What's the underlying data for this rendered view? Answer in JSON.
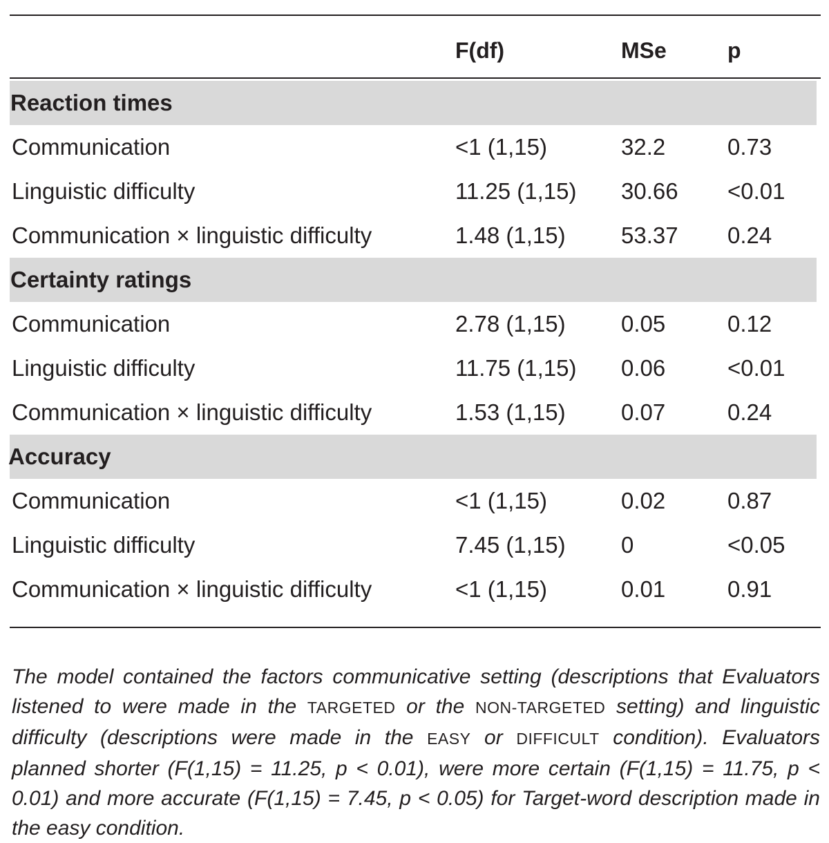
{
  "table": {
    "columns": [
      "",
      "F(df)",
      "MSe",
      "p"
    ],
    "sections": [
      {
        "title": "Reaction times",
        "rows": [
          [
            "Communication",
            "<1 (1,15)",
            "32.2",
            "0.73"
          ],
          [
            "Linguistic difficulty",
            "11.25 (1,15)",
            "30.66",
            "<0.01"
          ],
          [
            "Communication × linguistic difficulty",
            "1.48 (1,15)",
            "53.37",
            "0.24"
          ]
        ]
      },
      {
        "title": "Certainty ratings",
        "rows": [
          [
            "Communication",
            "2.78 (1,15)",
            "0.05",
            "0.12"
          ],
          [
            "Linguistic difficulty",
            "11.75 (1,15)",
            "0.06",
            "<0.01"
          ],
          [
            "Communication × linguistic difficulty",
            "1.53 (1,15)",
            "0.07",
            "0.24"
          ]
        ]
      },
      {
        "title": "Accuracy",
        "rows": [
          [
            "Communication",
            "<1 (1,15)",
            "0.02",
            "0.87"
          ],
          [
            "Linguistic difficulty",
            "7.45 (1,15)",
            "0",
            "<0.05"
          ],
          [
            "Communication × linguistic difficulty",
            "<1 (1,15)",
            "0.01",
            "0.91"
          ]
        ]
      }
    ]
  },
  "footnote": {
    "part1": "The model contained the factors communicative setting (descriptions that Evaluators listened to were made in the ",
    "sc1": "TARGETED",
    "part2": " or the ",
    "sc2": "NON-TARGETED",
    "part3": " setting) and linguistic difficulty (descriptions were made in the ",
    "sc3": "EASY",
    "part4": " or ",
    "sc4": "DIFFICULT",
    "part5": " condition). Evaluators planned shorter (F(1,15) = 11.25, p < 0.01), were more certain (F(1,15) = 11.75, p < 0.01) and more accurate (F(1,15) = 7.45, p < 0.05) for Target-word description made in the easy condition."
  }
}
